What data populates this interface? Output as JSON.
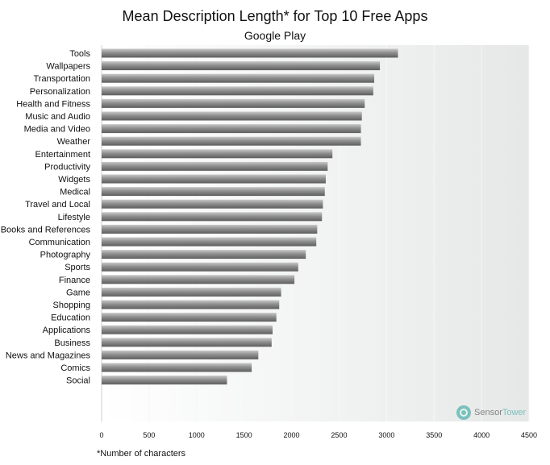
{
  "chart_data": {
    "type": "bar",
    "orientation": "horizontal",
    "title": "Mean Description Length* for Top 10 Free Apps",
    "subtitle": "Google Play",
    "footnote": "*Number of characters",
    "xlabel": "",
    "ylabel": "",
    "xlim": [
      0,
      4500
    ],
    "xticks": [
      "0",
      "500",
      "1000",
      "1500",
      "2000",
      "2500",
      "3000",
      "3500",
      "4000",
      "4500"
    ],
    "grid": true,
    "categories": [
      "Tools",
      "Wallpapers",
      "Transportation",
      "Personalization",
      "Health and Fitness",
      "Music and Audio",
      "Media and Video",
      "Weather",
      "Entertainment",
      "Productivity",
      "Widgets",
      "Medical",
      "Travel and Local",
      "Lifestyle",
      "Books and References",
      "Communication",
      "Photography",
      "Sports",
      "Finance",
      "Game",
      "Shopping",
      "Education",
      "Applications",
      "Business",
      "News and Magazines",
      "Comics",
      "Social"
    ],
    "values": [
      3120,
      2930,
      2870,
      2860,
      2770,
      2740,
      2730,
      2730,
      2430,
      2380,
      2360,
      2350,
      2330,
      2320,
      2270,
      2260,
      2150,
      2070,
      2030,
      1890,
      1870,
      1840,
      1800,
      1790,
      1650,
      1580,
      1320
    ],
    "bar_color": "#9a9a9a"
  },
  "watermark": {
    "brand_first": "Sensor",
    "brand_second": "Tower",
    "color": "#5fb7b2"
  }
}
